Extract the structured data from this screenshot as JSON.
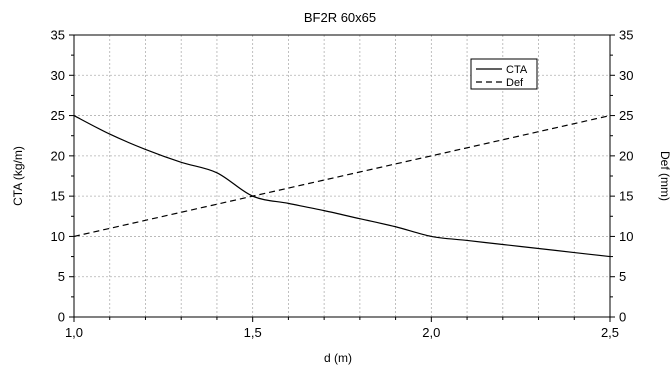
{
  "chart_data": {
    "type": "line",
    "title": "BF2R 60x65",
    "xlabel": "d (m)",
    "ylabel": "CTA (kg/m)",
    "y2label": "Def (mm)",
    "xlim": [
      1.0,
      2.5
    ],
    "ylim": [
      0,
      35
    ],
    "y2lim": [
      0,
      35
    ],
    "x_ticks": [
      "1,0",
      "1,5",
      "2,0",
      "2,5"
    ],
    "x_tick_values": [
      1.0,
      1.5,
      2.0,
      2.5
    ],
    "y_ticks": [
      "0",
      "5",
      "10",
      "15",
      "20",
      "25",
      "30",
      "35"
    ],
    "y_tick_values": [
      0,
      5,
      10,
      15,
      20,
      25,
      30,
      35
    ],
    "grid": true,
    "legend_position": "top-right",
    "series": [
      {
        "name": "CTA",
        "axis": "left",
        "line_style": "solid",
        "x": [
          1.0,
          1.1,
          1.2,
          1.3,
          1.4,
          1.5,
          1.6,
          1.7,
          1.8,
          1.9,
          2.0,
          2.1,
          2.2,
          2.3,
          2.4,
          2.5
        ],
        "values": [
          25.0,
          22.7,
          20.8,
          19.2,
          17.9,
          15.0,
          14.1,
          13.2,
          12.2,
          11.2,
          10.0,
          9.5,
          9.0,
          8.5,
          8.0,
          7.5
        ]
      },
      {
        "name": "Def",
        "axis": "right",
        "line_style": "dashed",
        "x": [
          1.0,
          1.5,
          2.0,
          2.5
        ],
        "values": [
          10.0,
          15.0,
          20.0,
          25.0
        ]
      }
    ]
  }
}
